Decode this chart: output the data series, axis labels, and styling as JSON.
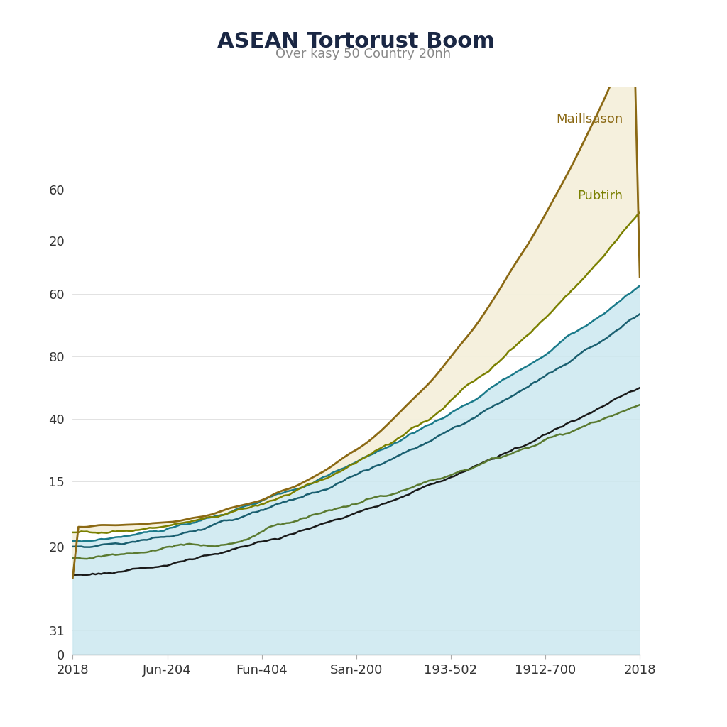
{
  "title": "ASEAN Tortorust Boom",
  "subtitle": "Over kasy 50 Country 20nh",
  "x_labels": [
    "2018",
    "Jun-204",
    "Fun-404",
    "San-200",
    "193-502",
    "1912-700",
    "2018"
  ],
  "label_maillsason": "Maillsason",
  "label_pubtirh": "Pubtirh",
  "title_color": "#1a2744",
  "subtitle_color": "#888888",
  "line_maillsason_color": "#8B6914",
  "line_pubtirh_color": "#7a8000",
  "line_teal_color": "#1a7a8a",
  "line_dark_teal_color": "#1a5f70",
  "line_olive_color": "#5a7a30",
  "line_black_color": "#1a1a1a",
  "fill_blue_color": "#cce8f0",
  "fill_cream_color": "#f5f0dc",
  "y_tick_labels": [
    "0",
    "31",
    "20",
    "15",
    "40",
    "80",
    "60",
    "20",
    "60"
  ],
  "y_tick_positions": [
    0.0,
    0.042,
    0.19,
    0.305,
    0.415,
    0.525,
    0.635,
    0.73,
    0.82
  ]
}
